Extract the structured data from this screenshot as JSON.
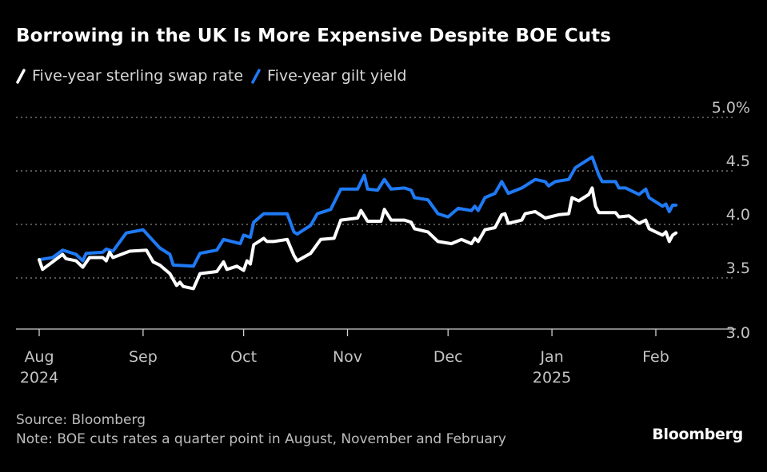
{
  "chart_data": {
    "type": "line",
    "title": "Borrowing in the UK Is More Expensive Despite BOE Cuts",
    "xlabel": "",
    "ylabel": "",
    "ylim": [
      3.0,
      5.0
    ],
    "yticks": [
      "5.0%",
      "4.5",
      "4.0",
      "3.5",
      "3.0"
    ],
    "ytick_values": [
      5.0,
      4.5,
      4.0,
      3.5,
      3.0
    ],
    "xticks": [
      {
        "date": "2024-08-01",
        "label": "Aug",
        "sublabel": "2024"
      },
      {
        "date": "2024-09-01",
        "label": "Sep",
        "sublabel": ""
      },
      {
        "date": "2024-10-01",
        "label": "Oct",
        "sublabel": ""
      },
      {
        "date": "2024-11-01",
        "label": "Nov",
        "sublabel": ""
      },
      {
        "date": "2024-12-01",
        "label": "Dec",
        "sublabel": ""
      },
      {
        "date": "2025-01-01",
        "label": "Jan",
        "sublabel": "2025"
      },
      {
        "date": "2025-02-01",
        "label": "Feb",
        "sublabel": ""
      }
    ],
    "grid": "horizontal dotted",
    "legend_position": "top-left",
    "series": [
      {
        "name": "Five-year sterling swap rate",
        "color": "#ffffff",
        "points": [
          [
            "2024-08-01",
            3.67
          ],
          [
            "2024-08-02",
            3.58
          ],
          [
            "2024-08-05",
            3.65
          ],
          [
            "2024-08-08",
            3.72
          ],
          [
            "2024-08-09",
            3.68
          ],
          [
            "2024-08-12",
            3.66
          ],
          [
            "2024-08-14",
            3.6
          ],
          [
            "2024-08-16",
            3.69
          ],
          [
            "2024-08-20",
            3.69
          ],
          [
            "2024-08-21",
            3.66
          ],
          [
            "2024-08-22",
            3.74
          ],
          [
            "2024-08-23",
            3.69
          ],
          [
            "2024-08-28",
            3.75
          ],
          [
            "2024-09-02",
            3.76
          ],
          [
            "2024-09-04",
            3.65
          ],
          [
            "2024-09-06",
            3.62
          ],
          [
            "2024-09-09",
            3.54
          ],
          [
            "2024-09-11",
            3.43
          ],
          [
            "2024-09-12",
            3.46
          ],
          [
            "2024-09-13",
            3.42
          ],
          [
            "2024-09-16",
            3.4
          ],
          [
            "2024-09-18",
            3.54
          ],
          [
            "2024-09-23",
            3.56
          ],
          [
            "2024-09-25",
            3.65
          ],
          [
            "2024-09-26",
            3.58
          ],
          [
            "2024-09-29",
            3.61
          ],
          [
            "2024-10-01",
            3.57
          ],
          [
            "2024-10-02",
            3.66
          ],
          [
            "2024-10-03",
            3.63
          ],
          [
            "2024-10-04",
            3.81
          ],
          [
            "2024-10-07",
            3.87
          ],
          [
            "2024-10-08",
            3.84
          ],
          [
            "2024-10-10",
            3.84
          ],
          [
            "2024-10-14",
            3.86
          ],
          [
            "2024-10-16",
            3.71
          ],
          [
            "2024-10-17",
            3.66
          ],
          [
            "2024-10-21",
            3.73
          ],
          [
            "2024-10-24",
            3.86
          ],
          [
            "2024-10-28",
            3.87
          ],
          [
            "2024-10-30",
            4.04
          ],
          [
            "2024-11-04",
            4.06
          ],
          [
            "2024-11-05",
            4.13
          ],
          [
            "2024-11-07",
            4.03
          ],
          [
            "2024-11-11",
            4.03
          ],
          [
            "2024-11-12",
            4.14
          ],
          [
            "2024-11-14",
            4.04
          ],
          [
            "2024-11-18",
            4.04
          ],
          [
            "2024-11-20",
            4.02
          ],
          [
            "2024-11-21",
            3.96
          ],
          [
            "2024-11-25",
            3.93
          ],
          [
            "2024-11-28",
            3.84
          ],
          [
            "2024-12-02",
            3.82
          ],
          [
            "2024-12-05",
            3.86
          ],
          [
            "2024-12-08",
            3.82
          ],
          [
            "2024-12-09",
            3.87
          ],
          [
            "2024-12-10",
            3.84
          ],
          [
            "2024-12-12",
            3.95
          ],
          [
            "2024-12-15",
            3.97
          ],
          [
            "2024-12-17",
            4.09
          ],
          [
            "2024-12-18",
            4.1
          ],
          [
            "2024-12-19",
            4.01
          ],
          [
            "2024-12-23",
            4.04
          ],
          [
            "2024-12-24",
            4.1
          ],
          [
            "2024-12-27",
            4.12
          ],
          [
            "2024-12-30",
            4.06
          ],
          [
            "2025-01-03",
            4.09
          ],
          [
            "2025-01-06",
            4.1
          ],
          [
            "2025-01-07",
            4.25
          ],
          [
            "2025-01-09",
            4.22
          ],
          [
            "2025-01-12",
            4.28
          ],
          [
            "2025-01-13",
            4.34
          ],
          [
            "2025-01-14",
            4.17
          ],
          [
            "2025-01-15",
            4.11
          ],
          [
            "2025-01-20",
            4.11
          ],
          [
            "2025-01-21",
            4.07
          ],
          [
            "2025-01-24",
            4.08
          ],
          [
            "2025-01-27",
            4.01
          ],
          [
            "2025-01-29",
            4.04
          ],
          [
            "2025-01-30",
            3.96
          ],
          [
            "2025-02-03",
            3.9
          ],
          [
            "2025-02-04",
            3.93
          ],
          [
            "2025-02-05",
            3.84
          ],
          [
            "2025-02-06",
            3.9
          ],
          [
            "2025-02-07",
            3.92
          ]
        ]
      },
      {
        "name": "Five-year gilt yield",
        "color": "#1f7af5",
        "points": [
          [
            "2024-08-01",
            3.67
          ],
          [
            "2024-08-05",
            3.69
          ],
          [
            "2024-08-08",
            3.76
          ],
          [
            "2024-08-12",
            3.72
          ],
          [
            "2024-08-14",
            3.66
          ],
          [
            "2024-08-15",
            3.73
          ],
          [
            "2024-08-20",
            3.74
          ],
          [
            "2024-08-21",
            3.77
          ],
          [
            "2024-08-23",
            3.75
          ],
          [
            "2024-08-27",
            3.92
          ],
          [
            "2024-09-01",
            3.95
          ],
          [
            "2024-09-06",
            3.78
          ],
          [
            "2024-09-09",
            3.72
          ],
          [
            "2024-09-10",
            3.62
          ],
          [
            "2024-09-16",
            3.61
          ],
          [
            "2024-09-18",
            3.73
          ],
          [
            "2024-09-23",
            3.76
          ],
          [
            "2024-09-25",
            3.86
          ],
          [
            "2024-09-30",
            3.82
          ],
          [
            "2024-10-01",
            3.9
          ],
          [
            "2024-10-03",
            3.88
          ],
          [
            "2024-10-04",
            4.02
          ],
          [
            "2024-10-07",
            4.1
          ],
          [
            "2024-10-14",
            4.1
          ],
          [
            "2024-10-16",
            3.93
          ],
          [
            "2024-10-17",
            3.91
          ],
          [
            "2024-10-21",
            3.99
          ],
          [
            "2024-10-23",
            4.1
          ],
          [
            "2024-10-27",
            4.14
          ],
          [
            "2024-10-30",
            4.33
          ],
          [
            "2024-11-04",
            4.33
          ],
          [
            "2024-11-06",
            4.46
          ],
          [
            "2024-11-07",
            4.33
          ],
          [
            "2024-11-10",
            4.32
          ],
          [
            "2024-11-12",
            4.42
          ],
          [
            "2024-11-14",
            4.33
          ],
          [
            "2024-11-18",
            4.34
          ],
          [
            "2024-11-20",
            4.32
          ],
          [
            "2024-11-21",
            4.25
          ],
          [
            "2024-11-25",
            4.23
          ],
          [
            "2024-11-28",
            4.1
          ],
          [
            "2024-12-01",
            4.07
          ],
          [
            "2024-12-04",
            4.15
          ],
          [
            "2024-12-08",
            4.13
          ],
          [
            "2024-12-09",
            4.17
          ],
          [
            "2024-12-10",
            4.13
          ],
          [
            "2024-12-12",
            4.25
          ],
          [
            "2024-12-15",
            4.29
          ],
          [
            "2024-12-17",
            4.4
          ],
          [
            "2024-12-19",
            4.29
          ],
          [
            "2024-12-23",
            4.34
          ],
          [
            "2024-12-27",
            4.42
          ],
          [
            "2024-12-30",
            4.4
          ],
          [
            "2024-12-31",
            4.36
          ],
          [
            "2025-01-02",
            4.4
          ],
          [
            "2025-01-06",
            4.42
          ],
          [
            "2025-01-08",
            4.53
          ],
          [
            "2025-01-13",
            4.63
          ],
          [
            "2025-01-15",
            4.46
          ],
          [
            "2025-01-16",
            4.4
          ],
          [
            "2025-01-20",
            4.4
          ],
          [
            "2025-01-21",
            4.34
          ],
          [
            "2025-01-23",
            4.34
          ],
          [
            "2025-01-27",
            4.28
          ],
          [
            "2025-01-29",
            4.33
          ],
          [
            "2025-01-30",
            4.25
          ],
          [
            "2025-02-03",
            4.17
          ],
          [
            "2025-02-04",
            4.19
          ],
          [
            "2025-02-05",
            4.12
          ],
          [
            "2025-02-06",
            4.18
          ],
          [
            "2025-02-07",
            4.18
          ]
        ]
      }
    ]
  },
  "footer": {
    "source": "Source: Bloomberg",
    "note": "Note: BOE cuts rates a quarter point in August, November and February"
  },
  "logo": "Bloomberg"
}
